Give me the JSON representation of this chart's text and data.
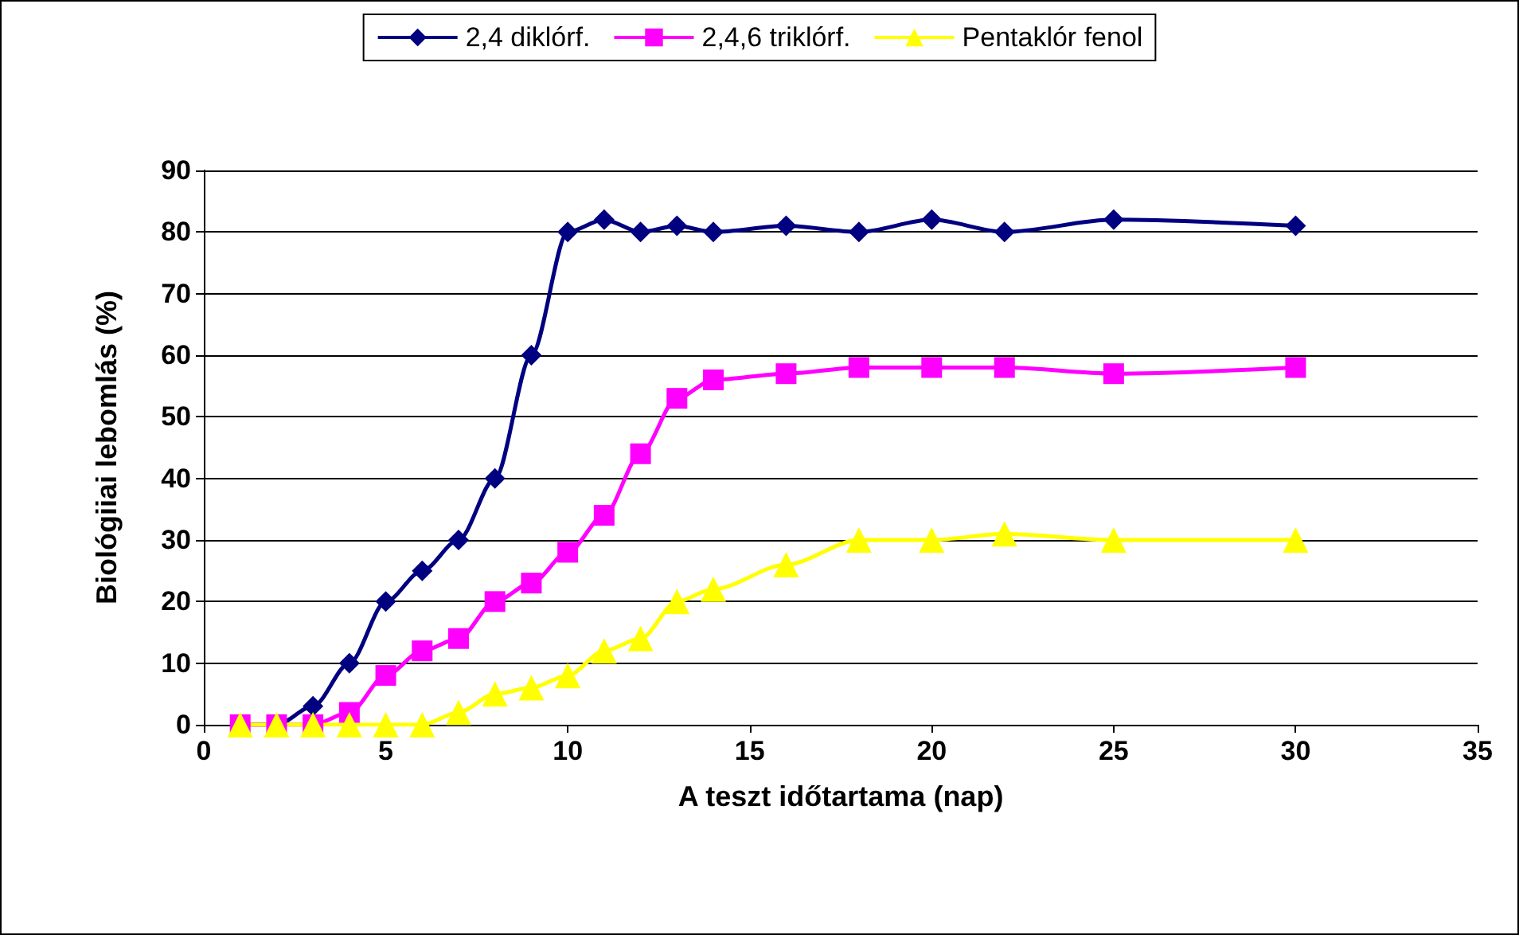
{
  "chart_data": {
    "type": "line",
    "xlabel": "A teszt időtartama (nap)",
    "ylabel": "Biológiiai lebomlás (%)",
    "x": [
      1,
      2,
      3,
      4,
      5,
      6,
      7,
      8,
      9,
      10,
      11,
      12,
      13,
      14,
      16,
      18,
      20,
      22,
      25,
      30
    ],
    "series": [
      {
        "name": "2,4 diklórf.",
        "color": "#000080",
        "marker": "diamond",
        "values": [
          0,
          0,
          3,
          10,
          20,
          25,
          30,
          40,
          60,
          80,
          82,
          80,
          81,
          80,
          81,
          80,
          82,
          80,
          82,
          81
        ]
      },
      {
        "name": "2,4,6 triklórf.",
        "color": "#ff00ff",
        "marker": "square",
        "values": [
          0,
          0,
          0,
          2,
          8,
          12,
          14,
          20,
          23,
          28,
          34,
          44,
          53,
          56,
          57,
          58,
          58,
          58,
          57,
          58
        ]
      },
      {
        "name": "Pentaklór fenol",
        "color": "#ffff00",
        "marker": "triangle",
        "values": [
          0,
          0,
          0,
          0,
          0,
          0,
          2,
          5,
          6,
          8,
          12,
          14,
          20,
          22,
          26,
          30,
          30,
          31,
          30,
          30
        ]
      }
    ],
    "xlim": [
      0,
      35
    ],
    "xticks": [
      0,
      5,
      10,
      15,
      20,
      25,
      30,
      35
    ],
    "ylim": [
      0,
      90
    ],
    "yticks": [
      0,
      10,
      20,
      30,
      40,
      50,
      60,
      70,
      80,
      90
    ],
    "grid": "y",
    "legend": "top"
  }
}
